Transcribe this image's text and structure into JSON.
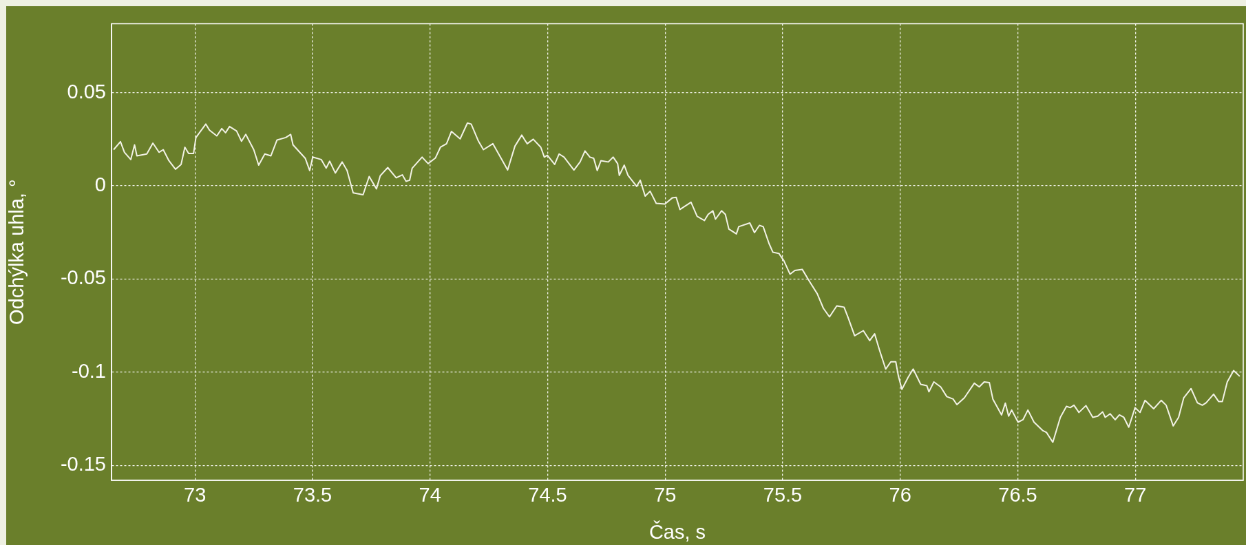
{
  "chart_data": {
    "type": "line",
    "xlabel": "Čas, s",
    "ylabel": "Odchýlka uhla, °",
    "xlim": [
      72.645,
      77.459
    ],
    "ylim": [
      -0.158,
      0.087
    ],
    "xticks": [
      73,
      73.5,
      74,
      74.5,
      75,
      75.5,
      76,
      76.5,
      77
    ],
    "yticks": [
      -0.15,
      -0.1,
      -0.05,
      0,
      0.05
    ],
    "grid": true,
    "legend": false,
    "marker": "none",
    "line_style": "solid",
    "series": [
      {
        "color": "#f2f2e6",
        "x": [
          72.654,
          72.683,
          72.7,
          72.727,
          72.743,
          72.753,
          72.795,
          72.821,
          72.847,
          72.865,
          72.889,
          72.917,
          72.941,
          72.957,
          72.973,
          72.994,
          73.004,
          73.046,
          73.062,
          73.093,
          73.114,
          73.13,
          73.147,
          73.177,
          73.198,
          73.216,
          73.25,
          73.271,
          73.297,
          73.323,
          73.349,
          73.386,
          73.407,
          73.417,
          73.469,
          73.488,
          73.501,
          73.537,
          73.558,
          73.573,
          73.597,
          73.626,
          73.647,
          73.673,
          73.715,
          73.741,
          73.772,
          73.788,
          73.82,
          73.856,
          73.882,
          73.898,
          73.913,
          73.924,
          73.966,
          73.992,
          74.023,
          74.044,
          74.07,
          74.091,
          74.128,
          74.159,
          74.175,
          74.206,
          74.227,
          74.267,
          74.33,
          74.361,
          74.39,
          74.413,
          74.439,
          74.471,
          74.486,
          74.499,
          74.53,
          74.549,
          74.57,
          74.612,
          74.638,
          74.659,
          74.68,
          74.696,
          74.711,
          74.727,
          74.758,
          74.779,
          74.798,
          74.805,
          74.826,
          74.842,
          74.879,
          74.894,
          74.915,
          74.936,
          74.962,
          74.999,
          75.031,
          75.047,
          75.063,
          75.11,
          75.136,
          75.167,
          75.183,
          75.203,
          75.214,
          75.24,
          75.256,
          75.271,
          75.303,
          75.313,
          75.36,
          75.38,
          75.401,
          75.417,
          75.442,
          75.458,
          75.484,
          75.505,
          75.531,
          75.552,
          75.583,
          75.614,
          75.647,
          75.673,
          75.699,
          75.73,
          75.761,
          75.777,
          75.806,
          75.843,
          75.87,
          75.891,
          75.912,
          75.938,
          75.96,
          75.981,
          75.992,
          76.007,
          76.034,
          76.055,
          76.087,
          76.113,
          76.122,
          76.143,
          76.172,
          76.198,
          76.225,
          76.241,
          76.273,
          76.315,
          76.336,
          76.357,
          76.379,
          76.394,
          76.431,
          76.447,
          76.461,
          76.474,
          76.501,
          76.522,
          76.543,
          76.569,
          76.607,
          76.622,
          76.649,
          76.681,
          76.707,
          76.723,
          76.739,
          76.76,
          76.79,
          76.819,
          76.84,
          76.861,
          76.872,
          76.893,
          76.914,
          76.932,
          76.951,
          76.972,
          76.999,
          77.02,
          77.041,
          77.078,
          77.11,
          77.131,
          77.161,
          77.184,
          77.206,
          77.237,
          77.264,
          77.285,
          77.301,
          77.333,
          77.354,
          77.37,
          77.391,
          77.418,
          77.444
        ],
        "values": [
          0.0194,
          0.0237,
          0.018,
          0.0141,
          0.022,
          0.0161,
          0.0171,
          0.0229,
          0.018,
          0.0194,
          0.0135,
          0.0089,
          0.0115,
          0.0207,
          0.0174,
          0.0174,
          0.0259,
          0.0331,
          0.0298,
          0.0268,
          0.0307,
          0.0285,
          0.0318,
          0.0294,
          0.0239,
          0.0276,
          0.0194,
          0.0111,
          0.0171,
          0.0161,
          0.0246,
          0.0259,
          0.0276,
          0.022,
          0.0148,
          0.0082,
          0.0154,
          0.0141,
          0.0095,
          0.0132,
          0.0069,
          0.0128,
          0.0082,
          -0.0038,
          -0.0048,
          0.005,
          -0.0016,
          0.0054,
          0.0098,
          0.0043,
          0.0059,
          0.0024,
          0.003,
          0.0095,
          0.0154,
          0.0119,
          0.015,
          0.0207,
          0.0226,
          0.0292,
          0.0252,
          0.0337,
          0.0331,
          0.0239,
          0.0194,
          0.0226,
          0.0085,
          0.0213,
          0.0272,
          0.0226,
          0.025,
          0.0207,
          0.0154,
          0.0164,
          0.0115,
          0.0171,
          0.0154,
          0.0085,
          0.0128,
          0.0187,
          0.0154,
          0.0148,
          0.0082,
          0.0135,
          0.0128,
          0.0154,
          0.0119,
          0.0056,
          0.0111,
          0.0056,
          -0.0003,
          0.003,
          -0.0055,
          -0.0029,
          -0.0094,
          -0.0098,
          -0.0064,
          -0.0062,
          -0.0127,
          -0.0088,
          -0.0164,
          -0.0186,
          -0.0153,
          -0.0134,
          -0.0179,
          -0.0134,
          -0.0153,
          -0.0232,
          -0.0258,
          -0.0219,
          -0.0199,
          -0.0251,
          -0.0212,
          -0.0219,
          -0.031,
          -0.0356,
          -0.0363,
          -0.0402,
          -0.0474,
          -0.0454,
          -0.0448,
          -0.0513,
          -0.0579,
          -0.0657,
          -0.0703,
          -0.0644,
          -0.0651,
          -0.0703,
          -0.0804,
          -0.0777,
          -0.083,
          -0.0794,
          -0.0882,
          -0.0983,
          -0.0944,
          -0.0944,
          -0.102,
          -0.1092,
          -0.1026,
          -0.0983,
          -0.1065,
          -0.1072,
          -0.1105,
          -0.1052,
          -0.1079,
          -0.1131,
          -0.1144,
          -0.1174,
          -0.1137,
          -0.1059,
          -0.1079,
          -0.1052,
          -0.1056,
          -0.1144,
          -0.1229,
          -0.1166,
          -0.1236,
          -0.1203,
          -0.1268,
          -0.1255,
          -0.1203,
          -0.1268,
          -0.1314,
          -0.1323,
          -0.1376,
          -0.1242,
          -0.1183,
          -0.119,
          -0.1177,
          -0.1216,
          -0.1179,
          -0.1242,
          -0.1236,
          -0.1213,
          -0.1242,
          -0.1223,
          -0.1255,
          -0.1229,
          -0.1242,
          -0.1295,
          -0.119,
          -0.1216,
          -0.1151,
          -0.1196,
          -0.1151,
          -0.1177,
          -0.1288,
          -0.1242,
          -0.1137,
          -0.1088,
          -0.1164,
          -0.1177,
          -0.1164,
          -0.1118,
          -0.1157,
          -0.1157,
          -0.1052,
          -0.0991,
          -0.1022
        ]
      }
    ]
  }
}
